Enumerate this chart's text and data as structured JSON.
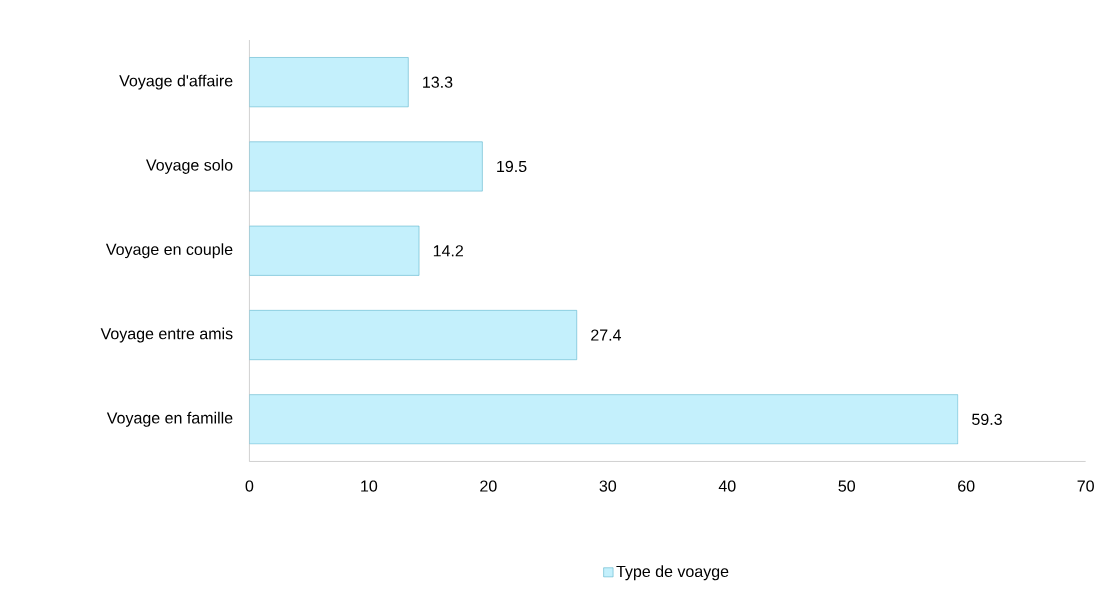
{
  "chart_data": {
    "type": "bar",
    "orientation": "horizontal",
    "categories": [
      "Voyage d'affaire",
      "Voyage solo",
      "Voyage en couple",
      "Voyage entre amis",
      "Voyage en famille"
    ],
    "series": [
      {
        "name": "Type de voayge",
        "color": "#c4f0fc",
        "values": [
          13.3,
          19.5,
          14.2,
          27.4,
          59.3
        ]
      }
    ],
    "xlim": [
      0,
      70
    ],
    "xticks": [
      0,
      10,
      20,
      30,
      40,
      50,
      60,
      70
    ],
    "data_labels": true,
    "grid": false,
    "legend": "bottom"
  }
}
